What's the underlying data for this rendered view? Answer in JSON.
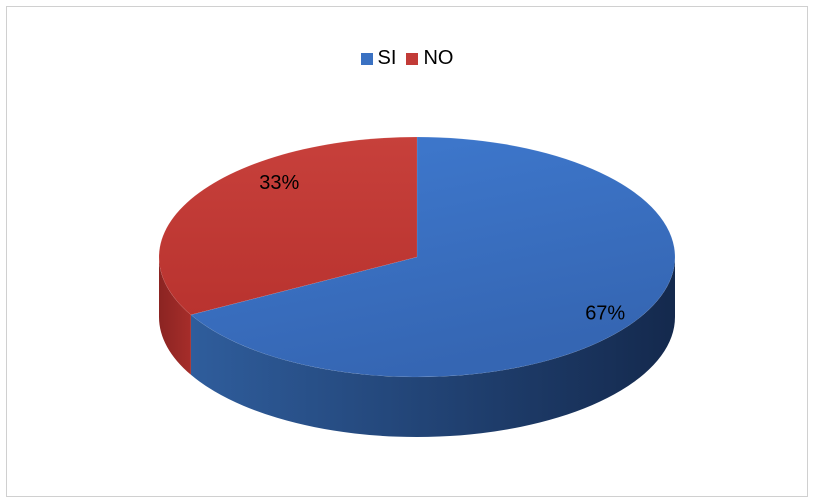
{
  "chart_data": {
    "type": "pie",
    "title": "",
    "categories": [
      "SI",
      "NO"
    ],
    "values": [
      67,
      33
    ],
    "labels": [
      "67%",
      "33%"
    ],
    "colors": [
      "#3a71c2",
      "#c23b37"
    ],
    "legend_position": "top",
    "style": "3d"
  },
  "legend": {
    "items": [
      {
        "label": "SI",
        "color": "#3a71c2"
      },
      {
        "label": "NO",
        "color": "#c23b37"
      }
    ]
  }
}
